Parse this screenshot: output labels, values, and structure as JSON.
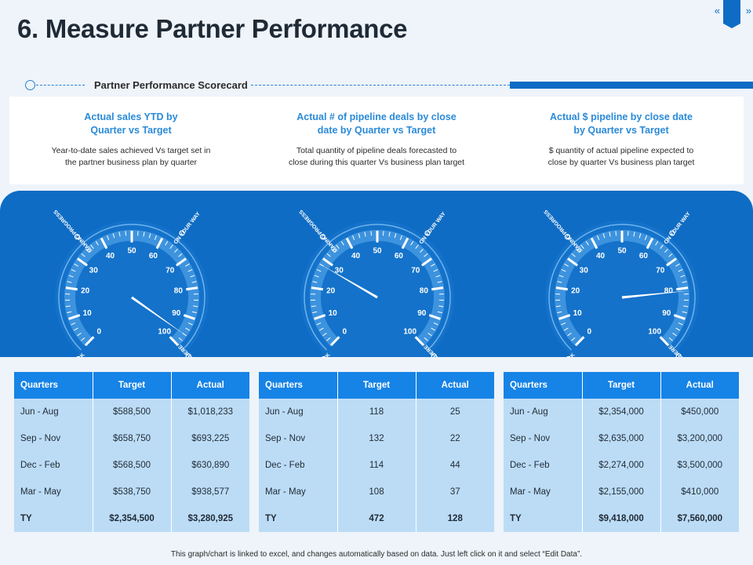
{
  "header": {
    "title": "6. Measure Partner Performance",
    "nav_prev": "«",
    "nav_next": "»"
  },
  "scorecard": {
    "label": "Partner Performance Scorecard"
  },
  "metrics": [
    {
      "title_line1": "Actual sales YTD by",
      "title_line2": "Quarter vs Target",
      "desc_line1": "Year-to-date sales achieved Vs target set in",
      "desc_line2": "the partner business plan by quarter"
    },
    {
      "title_line1": "Actual # of pipeline deals by close",
      "title_line2": "date by Quarter vs Target",
      "desc_line1": "Total quantity of pipeline deals forecasted to",
      "desc_line2": "close during this quarter Vs business plan target"
    },
    {
      "title_line1": "Actual $ pipeline by close date",
      "title_line2": "by Quarter vs Target",
      "desc_line1": "$ quantity of actual pipeline expected to",
      "desc_line2": "close by quarter Vs business plan target"
    }
  ],
  "gauge_common": {
    "ticks": [
      "0",
      "10",
      "20",
      "30",
      "40",
      "50",
      "60",
      "70",
      "80",
      "90",
      "100"
    ],
    "zones": [
      "ON TRACK",
      "MAKING PROGRESS",
      "ON YOUR WAY",
      "NEARLY THERE"
    ]
  },
  "gauges": [
    {
      "value": 96
    },
    {
      "value": 28
    },
    {
      "value": 81
    }
  ],
  "tables": [
    {
      "headers": [
        "Quarters",
        "Target",
        "Actual"
      ],
      "rows": [
        [
          "Jun - Aug",
          "$588,500",
          "$1,018,233"
        ],
        [
          "Sep - Nov",
          "$658,750",
          "$693,225"
        ],
        [
          "Dec - Feb",
          "$568,500",
          "$630,890"
        ],
        [
          "Mar - May",
          "$538,750",
          "$938,577"
        ],
        [
          "TY",
          "$2,354,500",
          "$3,280,925"
        ]
      ]
    },
    {
      "headers": [
        "Quarters",
        "Target",
        "Actual"
      ],
      "rows": [
        [
          "Jun - Aug",
          "118",
          "25"
        ],
        [
          "Sep - Nov",
          "132",
          "22"
        ],
        [
          "Dec - Feb",
          "114",
          "44"
        ],
        [
          "Mar - May",
          "108",
          "37"
        ],
        [
          "TY",
          "472",
          "128"
        ]
      ]
    },
    {
      "headers": [
        "Quarters",
        "Target",
        "Actual"
      ],
      "rows": [
        [
          "Jun - Aug",
          "$2,354,000",
          "$450,000"
        ],
        [
          "Sep - Nov",
          "$2,635,000",
          "$3,200,000"
        ],
        [
          "Dec - Feb",
          "$2,274,000",
          "$3,500,000"
        ],
        [
          "Mar - May",
          "$2,155,000",
          "$410,000"
        ],
        [
          "TY",
          "$9,418,000",
          "$7,560,000"
        ]
      ]
    }
  ],
  "footer": {
    "note": "This graph/chart is linked to excel, and changes automatically based on data. Just left click on it and select “Edit Data”."
  },
  "colors": {
    "primary": "#0e6cc4",
    "header_cell": "#1683e6",
    "body_cell": "#bcdcf6",
    "accent_text": "#2a8ad8",
    "background": "#eef4fa"
  }
}
